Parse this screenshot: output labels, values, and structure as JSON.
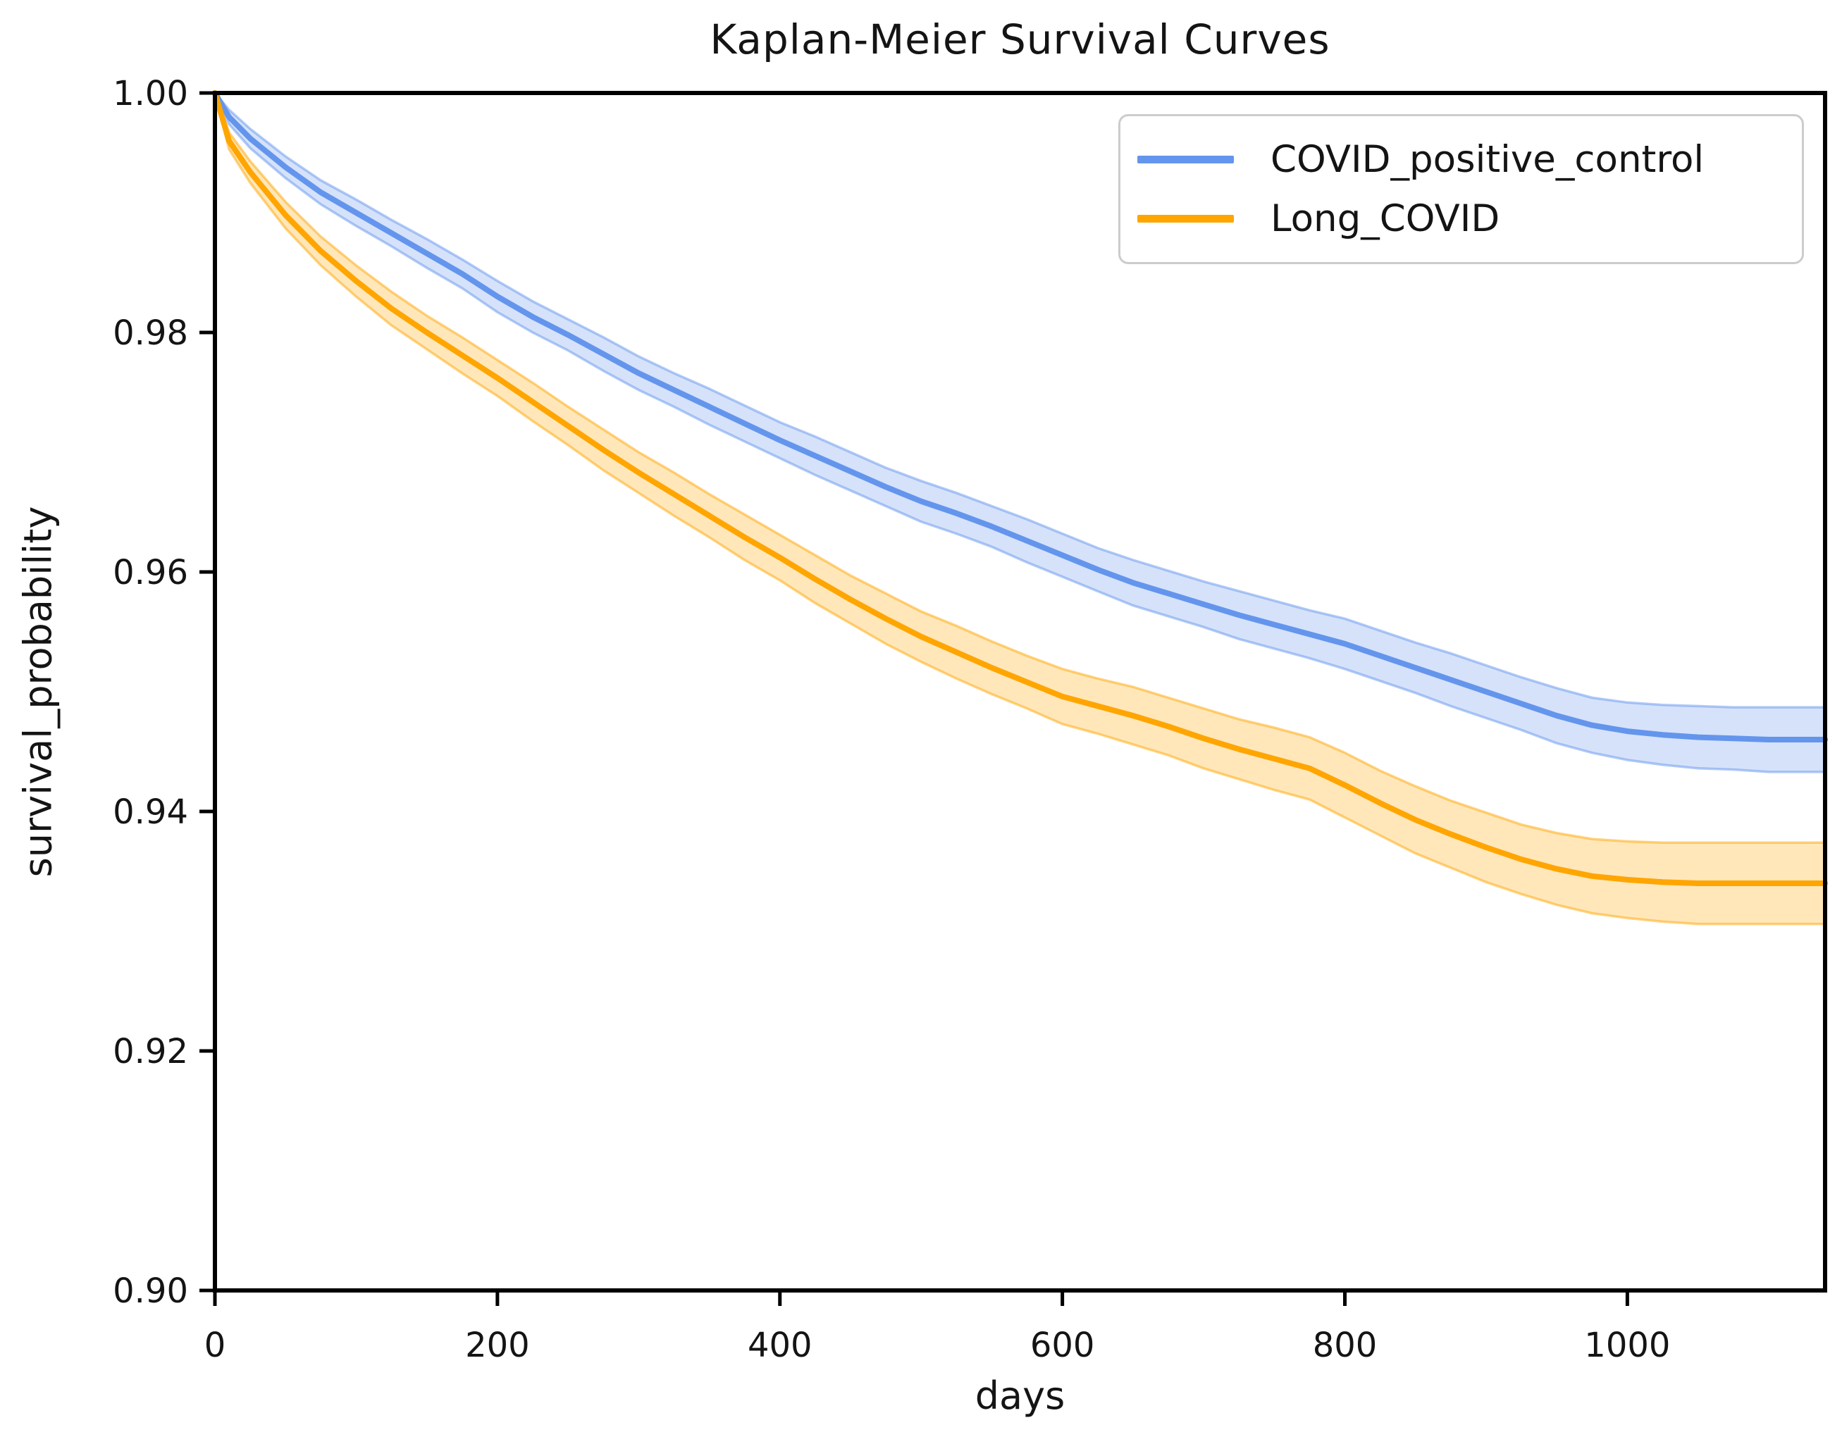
{
  "chart_data": {
    "type": "line",
    "title": "Kaplan-Meier Survival Curves",
    "xlabel": "days",
    "ylabel": "survival_probability",
    "xlim": [
      0,
      1140
    ],
    "ylim": [
      0.9,
      1.0
    ],
    "grid": false,
    "legend_position": "upper right",
    "x_ticks": [
      0,
      200,
      400,
      600,
      800,
      1000
    ],
    "x_tick_labels": [
      "0",
      "200",
      "400",
      "600",
      "800",
      "1000"
    ],
    "y_ticks": [
      1.0,
      0.98,
      0.96,
      0.94,
      0.92,
      0.9
    ],
    "y_tick_labels": [
      "1.00",
      "0.98",
      "0.96",
      "0.94",
      "0.92",
      "0.90"
    ],
    "axis_color": "#000000",
    "x": [
      0,
      10,
      25,
      50,
      75,
      100,
      125,
      150,
      175,
      200,
      225,
      250,
      275,
      300,
      325,
      350,
      375,
      400,
      425,
      450,
      475,
      500,
      525,
      550,
      575,
      600,
      625,
      650,
      675,
      700,
      725,
      750,
      775,
      800,
      825,
      850,
      875,
      900,
      925,
      950,
      975,
      1000,
      1025,
      1050,
      1075,
      1100,
      1125,
      1140
    ],
    "series": [
      {
        "name": "COVID_positive_control",
        "color": "#6495ED",
        "band_opacity": 0.27,
        "line_width": 8,
        "values": [
          1.0,
          0.998,
          0.9962,
          0.9938,
          0.9917,
          0.99,
          0.9883,
          0.9866,
          0.9849,
          0.983,
          0.9813,
          0.9798,
          0.9782,
          0.9766,
          0.9752,
          0.9738,
          0.9724,
          0.971,
          0.9697,
          0.9684,
          0.9671,
          0.9659,
          0.9649,
          0.9638,
          0.9626,
          0.9614,
          0.9602,
          0.9591,
          0.9582,
          0.9573,
          0.9564,
          0.9556,
          0.9548,
          0.954,
          0.953,
          0.952,
          0.951,
          0.95,
          0.949,
          0.948,
          0.9472,
          0.9467,
          0.9464,
          0.9462,
          0.9461,
          0.946,
          0.946,
          0.946
        ],
        "ci_half_width": [
          0.0,
          0.0006,
          0.0008,
          0.0009,
          0.001,
          0.0011,
          0.0011,
          0.0012,
          0.0012,
          0.0013,
          0.0013,
          0.0013,
          0.0014,
          0.0014,
          0.0014,
          0.0015,
          0.0015,
          0.0015,
          0.0016,
          0.0016,
          0.0016,
          0.0017,
          0.0017,
          0.0017,
          0.0018,
          0.0018,
          0.0018,
          0.0019,
          0.0019,
          0.0019,
          0.002,
          0.002,
          0.002,
          0.0021,
          0.0021,
          0.0021,
          0.0022,
          0.0022,
          0.0022,
          0.0023,
          0.0023,
          0.0024,
          0.0025,
          0.0026,
          0.0026,
          0.0027,
          0.0027,
          0.0027
        ]
      },
      {
        "name": "Long_COVID",
        "color": "#FFA500",
        "band_opacity": 0.27,
        "line_width": 8,
        "values": [
          1.0,
          0.996,
          0.9934,
          0.9898,
          0.9868,
          0.9843,
          0.982,
          0.98,
          0.9781,
          0.9762,
          0.9742,
          0.9722,
          0.9702,
          0.9683,
          0.9665,
          0.9647,
          0.9629,
          0.9612,
          0.9594,
          0.9577,
          0.9561,
          0.9546,
          0.9533,
          0.952,
          0.9508,
          0.9496,
          0.9488,
          0.948,
          0.9471,
          0.9461,
          0.9452,
          0.9444,
          0.9436,
          0.9422,
          0.9407,
          0.9393,
          0.9381,
          0.937,
          0.936,
          0.9352,
          0.9346,
          0.9343,
          0.9341,
          0.934,
          0.934,
          0.934,
          0.934,
          0.934
        ],
        "ci_half_width": [
          0.0,
          0.0007,
          0.0009,
          0.0011,
          0.0012,
          0.0013,
          0.0014,
          0.0014,
          0.0015,
          0.0015,
          0.0016,
          0.0016,
          0.0017,
          0.0017,
          0.0018,
          0.0018,
          0.0019,
          0.0019,
          0.002,
          0.002,
          0.0021,
          0.0021,
          0.0022,
          0.0022,
          0.0022,
          0.0023,
          0.0023,
          0.0024,
          0.0024,
          0.0025,
          0.0025,
          0.0026,
          0.0026,
          0.0027,
          0.0027,
          0.0028,
          0.0028,
          0.0029,
          0.0029,
          0.003,
          0.0031,
          0.0032,
          0.0033,
          0.0034,
          0.0034,
          0.0034,
          0.0034,
          0.0034
        ]
      }
    ]
  }
}
